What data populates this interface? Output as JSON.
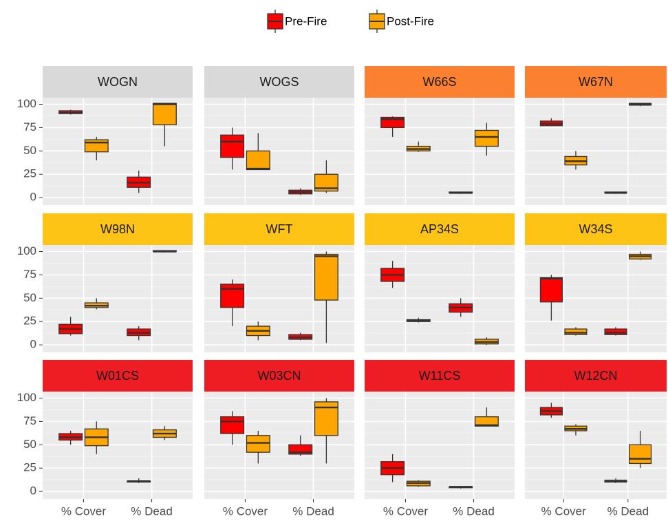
{
  "chart_data": {
    "type": "box",
    "series": [
      {
        "name": "Pre-Fire",
        "color": "#ff0000"
      },
      {
        "name": "Post-Fire",
        "color": "#ffa500"
      }
    ],
    "categories": [
      "% Cover",
      "% Dead"
    ],
    "ylim": [
      -8,
      107
    ],
    "yticks": [
      0,
      25,
      50,
      75,
      100
    ],
    "grid": true,
    "panels": [
      {
        "title": "WOGN",
        "strip_color": "#d9d9d9",
        "series": [
          {
            "values": [
              [
                89,
                90,
                91,
                93,
                94
              ],
              [
                5,
                11,
                16,
                22,
                29
              ]
            ]
          },
          {
            "values": [
              [
                40,
                49,
                59,
                62,
                65
              ],
              [
                55,
                78,
                100,
                101,
                101
              ]
            ]
          }
        ]
      },
      {
        "title": "WOGS",
        "strip_color": "#d9d9d9",
        "series": [
          {
            "values": [
              [
                30,
                43,
                60,
                67,
                75
              ],
              [
                3,
                4,
                6,
                8,
                10
              ]
            ]
          },
          {
            "values": [
              [
                30,
                30,
                31,
                50,
                69
              ],
              [
                5,
                7,
                10,
                25,
                40
              ]
            ]
          }
        ]
      },
      {
        "title": "W66S",
        "strip_color": "#fb8030",
        "series": [
          {
            "values": [
              [
                65,
                75,
                84,
                86,
                87
              ],
              [
                4,
                5,
                5,
                6,
                6
              ]
            ]
          },
          {
            "values": [
              [
                49,
                50,
                52,
                55,
                60
              ],
              [
                45,
                55,
                65,
                72,
                80
              ]
            ]
          }
        ]
      },
      {
        "title": "W67N",
        "strip_color": "#fb8030",
        "series": [
          {
            "values": [
              [
                77,
                77,
                79,
                82,
                85
              ],
              [
                4,
                5,
                5,
                6,
                6
              ]
            ]
          },
          {
            "values": [
              [
                30,
                35,
                39,
                44,
                50
              ],
              [
                98,
                99,
                100,
                101,
                101
              ]
            ]
          }
        ]
      },
      {
        "title": "W98N",
        "strip_color": "#fdc315",
        "series": [
          {
            "values": [
              [
                10,
                12,
                17,
                22,
                30
              ],
              [
                5,
                10,
                13,
                17,
                20
              ]
            ]
          },
          {
            "values": [
              [
                38,
                40,
                42,
                45,
                50
              ],
              [
                99,
                100,
                100,
                101,
                101
              ]
            ]
          }
        ]
      },
      {
        "title": "WFT",
        "strip_color": "#fdc315",
        "series": [
          {
            "values": [
              [
                20,
                40,
                60,
                65,
                70
              ],
              [
                5,
                6,
                8,
                11,
                13
              ]
            ]
          },
          {
            "values": [
              [
                5,
                10,
                15,
                20,
                25
              ],
              [
                2,
                48,
                95,
                97,
                100
              ]
            ]
          }
        ]
      },
      {
        "title": "AP34S",
        "strip_color": "#fdc315",
        "series": [
          {
            "values": [
              [
                61,
                68,
                75,
                82,
                90
              ],
              [
                30,
                35,
                40,
                44,
                50
              ]
            ]
          },
          {
            "values": [
              [
                24,
                25,
                26,
                27,
                29
              ],
              [
                0,
                1,
                3,
                6,
                8
              ]
            ]
          }
        ]
      },
      {
        "title": "W34S",
        "strip_color": "#fdc315",
        "series": [
          {
            "values": [
              [
                26,
                46,
                71,
                72,
                75
              ],
              [
                10,
                11,
                13,
                17,
                19
              ]
            ]
          },
          {
            "values": [
              [
                10,
                11,
                13,
                17,
                19
              ],
              [
                91,
                92,
                95,
                97,
                100
              ]
            ]
          }
        ]
      },
      {
        "title": "W01CS",
        "strip_color": "#ee1d23",
        "series": [
          {
            "values": [
              [
                50,
                55,
                58,
                62,
                65
              ],
              [
                9,
                10,
                11,
                11,
                14
              ]
            ]
          },
          {
            "values": [
              [
                40,
                49,
                58,
                67,
                75
              ],
              [
                55,
                58,
                62,
                66,
                70
              ]
            ]
          }
        ]
      },
      {
        "title": "W03CN",
        "strip_color": "#ee1d23",
        "series": [
          {
            "values": [
              [
                50,
                62,
                75,
                80,
                86
              ],
              [
                38,
                40,
                42,
                50,
                60
              ]
            ]
          },
          {
            "values": [
              [
                30,
                42,
                52,
                60,
                65
              ],
              [
                30,
                60,
                90,
                96,
                100
              ]
            ]
          }
        ]
      },
      {
        "title": "W11CS",
        "strip_color": "#ee1d23",
        "series": [
          {
            "values": [
              [
                10,
                18,
                25,
                32,
                40
              ],
              [
                3,
                4,
                5,
                5,
                6
              ]
            ]
          },
          {
            "values": [
              [
                5,
                6,
                9,
                11,
                12
              ],
              [
                70,
                70,
                71,
                80,
                90
              ]
            ]
          }
        ]
      },
      {
        "title": "W12CN",
        "strip_color": "#ee1d23",
        "series": [
          {
            "values": [
              [
                79,
                82,
                86,
                90,
                95
              ],
              [
                9,
                10,
                11,
                12,
                14
              ]
            ]
          },
          {
            "values": [
              [
                60,
                65,
                67,
                70,
                72
              ],
              [
                25,
                30,
                35,
                50,
                65
              ]
            ]
          }
        ]
      }
    ]
  }
}
